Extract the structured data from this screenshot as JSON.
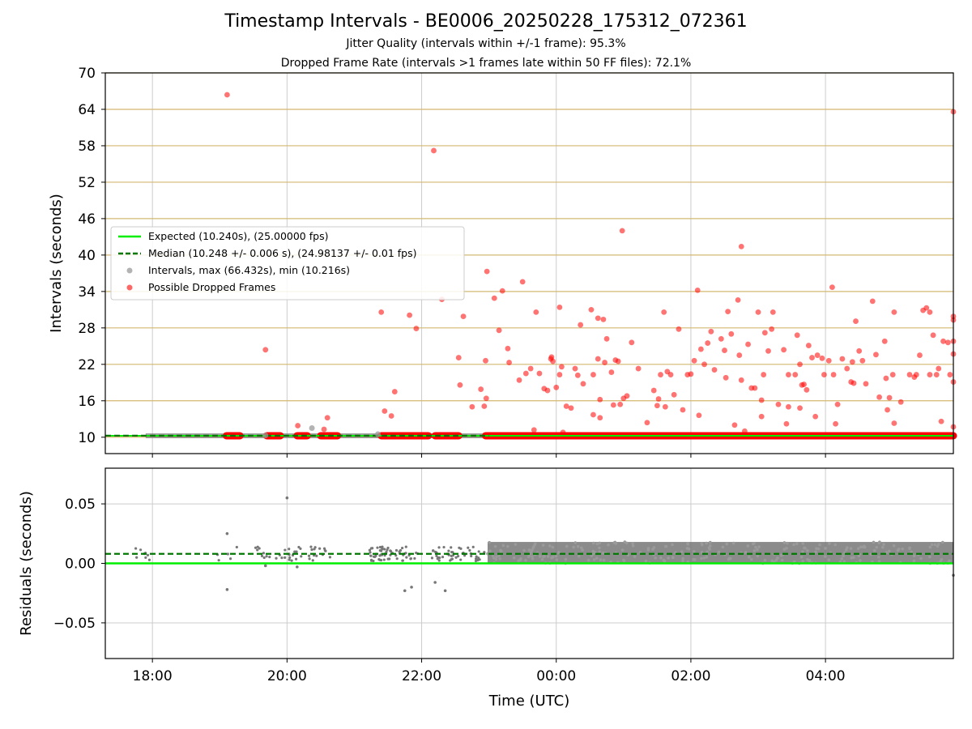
{
  "title": "Timestamp Intervals - BE0006_20250228_175312_072361",
  "subtitle1": "Jitter Quality (intervals within +/-1 frame): 95.3%",
  "subtitle2": "Dropped Frame Rate (intervals >1 frames late within 50 FF files): 72.1%",
  "colors": {
    "expected": "#00ee00",
    "median": "#007700",
    "dropped": "#ff0000",
    "intervals": "#999999",
    "residuals": "#777777",
    "hgrid_top": "#d4b870",
    "grid": "#cccccc"
  },
  "chart_data": [
    {
      "type": "scatter",
      "ylabel": "Intervals (seconds)",
      "ylim": [
        7.3,
        70
      ],
      "yticks": [
        "10",
        "16",
        "22",
        "28",
        "34",
        "40",
        "46",
        "52",
        "58",
        "64",
        "70"
      ],
      "ytick_values": [
        10,
        16,
        22,
        28,
        34,
        40,
        46,
        52,
        58,
        64,
        70
      ],
      "xlim_hours": [
        17.3,
        29.9
      ],
      "xticks": [
        "18:00",
        "20:00",
        "22:00",
        "00:00",
        "02:00",
        "04:00"
      ],
      "xtick_hours": [
        18,
        20,
        22,
        24,
        26,
        28
      ],
      "grid": true,
      "legend_position": "center-left",
      "legend": [
        "Expected (10.240s), (25.00000 fps)",
        "Median (10.248 +/- 0.006 s), (24.98137 +/- 0.01 fps)",
        "Intervals, max (66.432s), min (10.216s)",
        "Possible Dropped Frames"
      ],
      "expected": 10.24,
      "median": 10.248,
      "baseline_segments": [
        [
          19.1,
          19.3
        ],
        [
          19.7,
          19.9
        ],
        [
          20.15,
          20.3
        ],
        [
          20.5,
          20.75
        ],
        [
          21.4,
          22.1
        ],
        [
          22.2,
          22.55
        ],
        [
          22.95,
          29.9
        ]
      ],
      "intervals_points": [
        [
          20.37,
          11.5
        ],
        [
          21.35,
          10.5
        ],
        [
          19.68,
          10.3
        ]
      ],
      "dropped_points": [
        [
          19.11,
          66.4
        ],
        [
          19.68,
          24.4
        ],
        [
          20.16,
          11.9
        ],
        [
          20.55,
          11.3
        ],
        [
          20.6,
          13.2
        ],
        [
          21.4,
          30.6
        ],
        [
          21.45,
          14.3
        ],
        [
          21.55,
          13.5
        ],
        [
          21.6,
          17.5
        ],
        [
          21.82,
          30.1
        ],
        [
          21.92,
          27.9
        ],
        [
          22.18,
          57.2
        ],
        [
          22.3,
          32.7
        ],
        [
          22.55,
          23.1
        ],
        [
          22.57,
          18.6
        ],
        [
          22.62,
          29.9
        ],
        [
          22.75,
          15.0
        ],
        [
          22.88,
          17.9
        ],
        [
          22.93,
          15.1
        ],
        [
          22.96,
          16.4
        ],
        [
          22.95,
          22.6
        ],
        [
          22.97,
          37.3
        ],
        [
          23.08,
          32.9
        ],
        [
          23.15,
          27.6
        ],
        [
          23.2,
          34.1
        ],
        [
          23.28,
          24.6
        ],
        [
          23.3,
          22.3
        ],
        [
          23.45,
          19.4
        ],
        [
          23.5,
          35.6
        ],
        [
          23.55,
          20.5
        ],
        [
          23.62,
          21.3
        ],
        [
          23.67,
          11.2
        ],
        [
          23.7,
          30.6
        ],
        [
          23.75,
          20.5
        ],
        [
          23.82,
          18.0
        ],
        [
          23.87,
          17.7
        ],
        [
          23.92,
          22.9
        ],
        [
          23.93,
          23.2
        ],
        [
          23.95,
          22.5
        ],
        [
          24.0,
          18.2
        ],
        [
          24.05,
          20.3
        ],
        [
          24.08,
          21.6
        ],
        [
          24.05,
          31.4
        ],
        [
          24.1,
          10.8
        ],
        [
          24.15,
          15.1
        ],
        [
          24.22,
          14.8
        ],
        [
          24.28,
          21.3
        ],
        [
          24.32,
          20.2
        ],
        [
          24.36,
          28.5
        ],
        [
          24.4,
          18.8
        ],
        [
          24.52,
          31.0
        ],
        [
          24.55,
          20.3
        ],
        [
          24.55,
          13.7
        ],
        [
          24.62,
          22.9
        ],
        [
          24.65,
          13.2
        ],
        [
          24.65,
          16.2
        ],
        [
          24.7,
          29.4
        ],
        [
          24.62,
          29.6
        ],
        [
          24.72,
          22.3
        ],
        [
          24.75,
          26.2
        ],
        [
          24.82,
          20.7
        ],
        [
          24.85,
          15.3
        ],
        [
          24.88,
          22.7
        ],
        [
          24.92,
          22.5
        ],
        [
          24.95,
          15.4
        ],
        [
          24.98,
          44.0
        ],
        [
          25.0,
          16.4
        ],
        [
          25.05,
          16.8
        ],
        [
          25.12,
          25.6
        ],
        [
          25.22,
          21.3
        ],
        [
          25.35,
          12.4
        ],
        [
          25.45,
          17.7
        ],
        [
          25.5,
          15.2
        ],
        [
          25.52,
          16.3
        ],
        [
          25.55,
          20.3
        ],
        [
          25.6,
          30.6
        ],
        [
          25.62,
          15.0
        ],
        [
          25.65,
          20.8
        ],
        [
          25.7,
          20.3
        ],
        [
          25.75,
          17.0
        ],
        [
          25.82,
          27.8
        ],
        [
          25.88,
          14.5
        ],
        [
          25.95,
          20.3
        ],
        [
          26.0,
          20.4
        ],
        [
          26.05,
          22.6
        ],
        [
          26.12,
          13.6
        ],
        [
          26.1,
          34.2
        ],
        [
          26.15,
          24.5
        ],
        [
          26.2,
          22.0
        ],
        [
          26.25,
          25.5
        ],
        [
          26.3,
          27.4
        ],
        [
          26.35,
          21.1
        ],
        [
          26.45,
          26.2
        ],
        [
          26.55,
          30.7
        ],
        [
          26.5,
          24.3
        ],
        [
          26.52,
          19.8
        ],
        [
          26.6,
          27.0
        ],
        [
          26.65,
          12.0
        ],
        [
          26.72,
          23.5
        ],
        [
          26.75,
          41.4
        ],
        [
          26.75,
          19.4
        ],
        [
          26.7,
          32.6
        ],
        [
          26.85,
          25.3
        ],
        [
          26.8,
          11.0
        ],
        [
          26.9,
          18.1
        ],
        [
          26.95,
          18.1
        ],
        [
          27.0,
          30.6
        ],
        [
          27.08,
          20.3
        ],
        [
          27.05,
          16.1
        ],
        [
          27.1,
          27.2
        ],
        [
          27.05,
          13.4
        ],
        [
          27.15,
          24.2
        ],
        [
          27.22,
          30.6
        ],
        [
          27.2,
          27.8
        ],
        [
          27.3,
          15.4
        ],
        [
          27.38,
          24.4
        ],
        [
          27.45,
          15.0
        ],
        [
          27.45,
          20.3
        ],
        [
          27.42,
          12.2
        ],
        [
          27.55,
          20.3
        ],
        [
          27.58,
          26.8
        ],
        [
          27.62,
          22.0
        ],
        [
          27.65,
          18.6
        ],
        [
          27.62,
          14.8
        ],
        [
          27.68,
          18.7
        ],
        [
          27.72,
          17.8
        ],
        [
          27.75,
          25.1
        ],
        [
          27.8,
          23.1
        ],
        [
          27.85,
          13.4
        ],
        [
          27.88,
          23.5
        ],
        [
          27.95,
          23.0
        ],
        [
          27.98,
          20.3
        ],
        [
          28.05,
          22.6
        ],
        [
          28.1,
          34.7
        ],
        [
          28.15,
          12.2
        ],
        [
          28.18,
          15.4
        ],
        [
          28.12,
          20.3
        ],
        [
          28.25,
          22.9
        ],
        [
          28.32,
          21.3
        ],
        [
          28.38,
          19.1
        ],
        [
          28.4,
          22.4
        ],
        [
          28.45,
          29.1
        ],
        [
          28.42,
          18.9
        ],
        [
          28.5,
          24.2
        ],
        [
          28.55,
          22.6
        ],
        [
          28.6,
          18.8
        ],
        [
          28.7,
          32.4
        ],
        [
          28.75,
          23.6
        ],
        [
          28.8,
          16.6
        ],
        [
          28.88,
          25.8
        ],
        [
          28.9,
          19.7
        ],
        [
          28.92,
          14.5
        ],
        [
          28.95,
          16.5
        ],
        [
          29.0,
          20.3
        ],
        [
          29.02,
          30.6
        ],
        [
          29.02,
          12.3
        ],
        [
          29.12,
          15.8
        ],
        [
          29.25,
          20.3
        ],
        [
          29.32,
          19.9
        ],
        [
          29.35,
          20.3
        ],
        [
          29.4,
          23.5
        ],
        [
          29.45,
          30.9
        ],
        [
          29.5,
          31.3
        ],
        [
          29.55,
          30.6
        ],
        [
          29.6,
          26.8
        ],
        [
          29.55,
          20.3
        ],
        [
          29.65,
          20.3
        ],
        [
          29.68,
          21.3
        ],
        [
          29.72,
          12.6
        ],
        [
          29.75,
          25.8
        ],
        [
          29.82,
          25.6
        ],
        [
          29.85,
          20.3
        ],
        [
          29.92,
          29.3
        ],
        [
          29.95,
          19.1
        ],
        [
          29.98,
          29.9
        ],
        [
          29.98,
          11.7
        ],
        [
          30.02,
          25.8
        ],
        [
          30.08,
          23.7
        ],
        [
          30.08,
          63.6
        ]
      ]
    },
    {
      "type": "scatter",
      "xlabel": "Time (UTC)",
      "ylabel": "Residuals (seconds)",
      "ylim": [
        -0.08,
        0.08
      ],
      "yticks": [
        "−0.05",
        "0.00",
        "0.05"
      ],
      "ytick_values": [
        -0.05,
        0,
        0.05
      ],
      "expected_residual": 0,
      "median_residual": 0.008,
      "dense_band_hours": [
        22.98,
        29.9
      ],
      "dense_band_range": [
        0.0,
        0.018
      ],
      "outliers": [
        [
          19.11,
          0.025
        ],
        [
          19.11,
          -0.022
        ],
        [
          20.0,
          0.055
        ],
        [
          21.75,
          -0.023
        ],
        [
          21.85,
          -0.02
        ],
        [
          22.2,
          -0.016
        ],
        [
          22.35,
          -0.023
        ],
        [
          29.92,
          -0.01
        ],
        [
          20.15,
          -0.003
        ],
        [
          19.68,
          -0.002
        ]
      ]
    }
  ]
}
